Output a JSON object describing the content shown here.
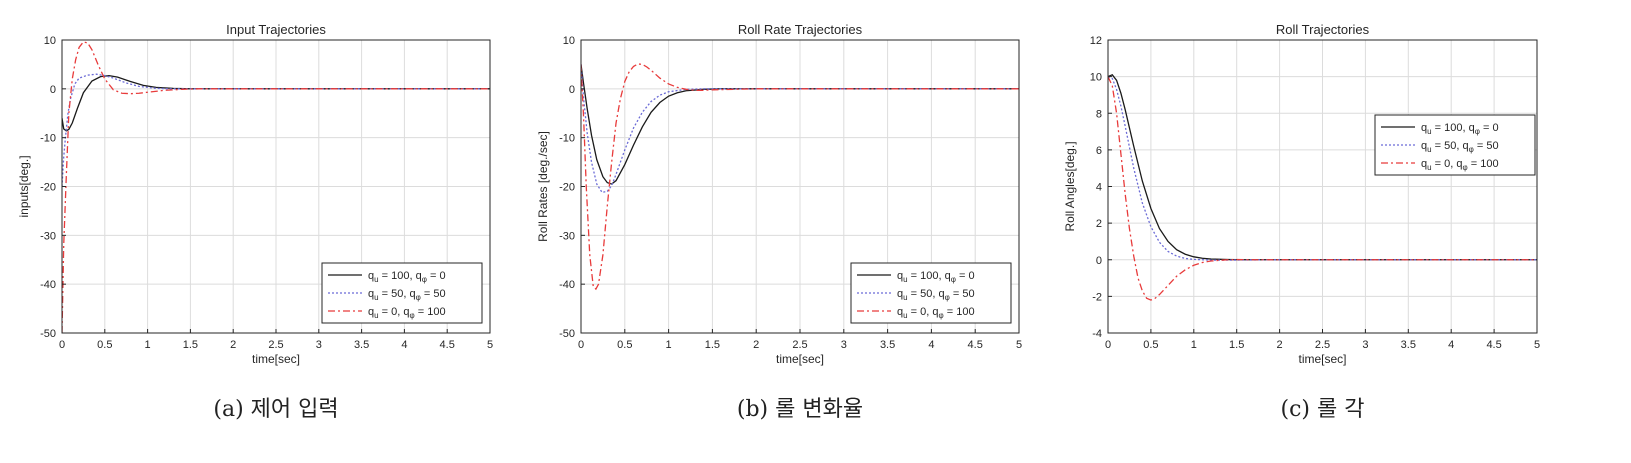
{
  "colors": {
    "series": [
      "#1a1a1a",
      "#6b6bd6",
      "#e83b3b"
    ],
    "grid": "#dcdcdc",
    "axis": "#262626"
  },
  "legend_entries": [
    {
      "qu": "100",
      "qphi": "0"
    },
    {
      "qu": "50",
      "qphi": "50"
    },
    {
      "qu": "0",
      "qphi": "100"
    }
  ],
  "chart_data": [
    {
      "type": "line",
      "title": "Input Trajectories",
      "xlabel": "time[sec]",
      "ylabel": "inputs[deg.]",
      "caption": "(a) 제어 입력",
      "xlim": [
        0,
        5
      ],
      "ylim": [
        -50,
        10
      ],
      "xticks": [
        0,
        0.5,
        1,
        1.5,
        2,
        2.5,
        3,
        3.5,
        4,
        4.5,
        5
      ],
      "yticks": [
        -50,
        -40,
        -30,
        -20,
        -10,
        0,
        10
      ],
      "grid": true,
      "legend_position": "bottom-right",
      "series": [
        {
          "x": [
            0,
            0.02,
            0.05,
            0.08,
            0.12,
            0.18,
            0.25,
            0.35,
            0.45,
            0.55,
            0.65,
            0.8,
            0.95,
            1.1,
            1.3,
            1.5,
            2,
            5
          ],
          "y": [
            -6,
            -8.2,
            -8.6,
            -8.3,
            -7,
            -4,
            -0.8,
            1.6,
            2.5,
            2.7,
            2.4,
            1.5,
            0.7,
            0.3,
            0.1,
            0,
            0,
            0
          ]
        },
        {
          "x": [
            0,
            0.02,
            0.04,
            0.07,
            0.1,
            0.15,
            0.2,
            0.3,
            0.4,
            0.5,
            0.6,
            0.75,
            0.9,
            1.1,
            1.3,
            1.5,
            2,
            5
          ],
          "y": [
            -20,
            -14,
            -10,
            -5,
            -2,
            1,
            2.2,
            2.8,
            3,
            2.7,
            2.2,
            1.2,
            0.5,
            0.1,
            0,
            0,
            0,
            0
          ]
        },
        {
          "x": [
            0,
            0.02,
            0.05,
            0.08,
            0.12,
            0.16,
            0.2,
            0.25,
            0.3,
            0.35,
            0.42,
            0.5,
            0.6,
            0.7,
            0.8,
            0.9,
            1.0,
            1.2,
            1.4,
            1.6,
            2,
            5
          ],
          "y": [
            -50,
            -32,
            -18,
            -5,
            2,
            6,
            8.5,
            9.6,
            9.4,
            8,
            5,
            2,
            -0.2,
            -0.9,
            -1,
            -0.9,
            -0.7,
            -0.3,
            -0.1,
            0,
            0,
            0
          ]
        }
      ]
    },
    {
      "type": "line",
      "title": "Roll Rate Trajectories",
      "xlabel": "time[sec]",
      "ylabel": "Roll Rates [deg./sec]",
      "caption": "(b) 롤 변화율",
      "xlim": [
        0,
        5
      ],
      "ylim": [
        -50,
        10
      ],
      "xticks": [
        0,
        0.5,
        1,
        1.5,
        2,
        2.5,
        3,
        3.5,
        4,
        4.5,
        5
      ],
      "yticks": [
        -50,
        -40,
        -30,
        -20,
        -10,
        0,
        10
      ],
      "grid": true,
      "legend_position": "bottom-right",
      "series": [
        {
          "x": [
            0,
            0.03,
            0.07,
            0.12,
            0.18,
            0.25,
            0.3,
            0.35,
            0.4,
            0.5,
            0.6,
            0.7,
            0.8,
            0.9,
            1.0,
            1.1,
            1.2,
            1.4,
            1.6,
            2,
            5
          ],
          "y": [
            5,
            1,
            -4,
            -9.5,
            -14.5,
            -18,
            -19.2,
            -19.5,
            -18.8,
            -15.5,
            -11.5,
            -7.8,
            -4.8,
            -2.8,
            -1.5,
            -0.8,
            -0.4,
            -0.1,
            0,
            0,
            0
          ]
        },
        {
          "x": [
            0,
            0.03,
            0.07,
            0.12,
            0.18,
            0.24,
            0.3,
            0.35,
            0.4,
            0.5,
            0.6,
            0.7,
            0.8,
            0.9,
            1.0,
            1.2,
            1.4,
            2,
            5
          ],
          "y": [
            5,
            -2,
            -9,
            -15,
            -19.5,
            -21.2,
            -21,
            -19.8,
            -17.5,
            -12.5,
            -8,
            -4.8,
            -2.6,
            -1.3,
            -0.6,
            -0.1,
            0,
            0,
            0
          ]
        },
        {
          "x": [
            0,
            0.03,
            0.06,
            0.1,
            0.14,
            0.17,
            0.2,
            0.25,
            0.3,
            0.35,
            0.4,
            0.45,
            0.5,
            0.55,
            0.6,
            0.65,
            0.7,
            0.75,
            0.8,
            0.85,
            0.9,
            1.0,
            1.1,
            1.2,
            1.3,
            1.4,
            1.5,
            2,
            5
          ],
          "y": [
            5,
            -6,
            -20,
            -34,
            -40.5,
            -41,
            -40,
            -34,
            -24,
            -15,
            -7,
            -2,
            1.5,
            3.5,
            4.6,
            5.1,
            5,
            4.5,
            3.8,
            3,
            2.2,
            1,
            0.3,
            -0.1,
            -0.3,
            -0.3,
            -0.2,
            0,
            0
          ]
        }
      ]
    },
    {
      "type": "line",
      "title": "Roll Trajectories",
      "xlabel": "time[sec]",
      "ylabel": "Roll Angles[deg.]",
      "caption": "(c) 롤 각",
      "xlim": [
        0,
        5
      ],
      "ylim": [
        -4,
        12
      ],
      "xticks": [
        0,
        0.5,
        1,
        1.5,
        2,
        2.5,
        3,
        3.5,
        4,
        4.5,
        5
      ],
      "yticks": [
        -4,
        -2,
        0,
        2,
        4,
        6,
        8,
        10,
        12
      ],
      "grid": true,
      "legend_position": "top-right",
      "series": [
        {
          "x": [
            0,
            0.05,
            0.1,
            0.15,
            0.2,
            0.3,
            0.4,
            0.5,
            0.6,
            0.7,
            0.8,
            0.9,
            1.0,
            1.1,
            1.2,
            1.4,
            1.6,
            2,
            5
          ],
          "y": [
            10,
            10.1,
            9.8,
            9.1,
            8.2,
            6.2,
            4.3,
            2.8,
            1.7,
            1.0,
            0.55,
            0.3,
            0.16,
            0.08,
            0.04,
            0.01,
            0,
            0,
            0
          ]
        },
        {
          "x": [
            0,
            0.05,
            0.1,
            0.15,
            0.2,
            0.3,
            0.4,
            0.5,
            0.6,
            0.7,
            0.8,
            0.9,
            1.0,
            1.1,
            1.2,
            1.4,
            2,
            5
          ],
          "y": [
            10,
            9.9,
            9.3,
            8.4,
            7.3,
            5.0,
            3.1,
            1.8,
            0.95,
            0.45,
            0.2,
            0.07,
            0.02,
            0,
            -0.02,
            -0.02,
            0,
            0
          ]
        },
        {
          "x": [
            0,
            0.05,
            0.1,
            0.15,
            0.2,
            0.25,
            0.3,
            0.35,
            0.4,
            0.45,
            0.5,
            0.55,
            0.6,
            0.7,
            0.8,
            0.9,
            1.0,
            1.1,
            1.2,
            1.3,
            1.4,
            1.5,
            1.7,
            2,
            5
          ],
          "y": [
            10,
            9.5,
            8,
            5.8,
            3.6,
            1.7,
            0.2,
            -1,
            -1.7,
            -2.1,
            -2.2,
            -2.1,
            -1.9,
            -1.4,
            -0.9,
            -0.55,
            -0.3,
            -0.15,
            -0.07,
            -0.03,
            0,
            0.01,
            0,
            0,
            0
          ]
        }
      ]
    }
  ]
}
